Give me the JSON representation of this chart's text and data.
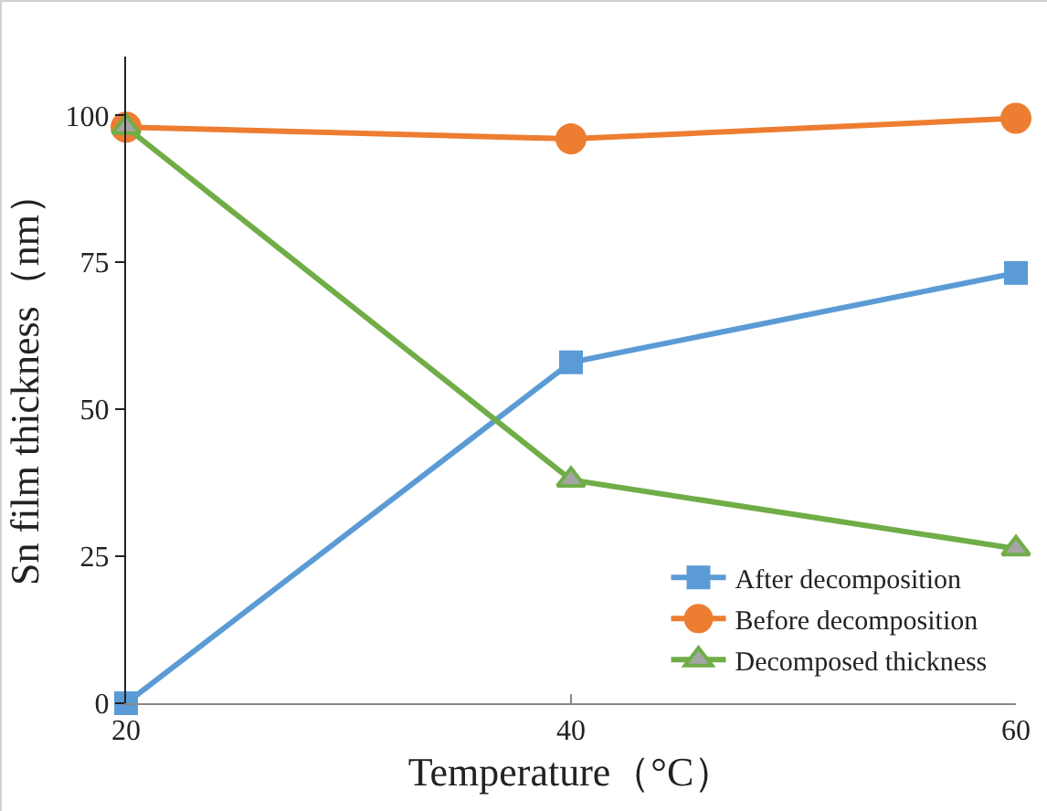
{
  "chart_data": {
    "type": "line",
    "xlabel": "Temperature（°C）",
    "ylabel": "Sn film thickness（nm）",
    "x": [
      20,
      40,
      60
    ],
    "xlim": [
      20,
      60
    ],
    "xticks": [
      20,
      40,
      60
    ],
    "ylim": [
      0,
      110
    ],
    "yticks": [
      0,
      25,
      50,
      75,
      100
    ],
    "grid": false,
    "legend": "bottom right",
    "series": [
      {
        "name": "After decomposition",
        "color": "#5b9bd5",
        "marker": "square",
        "values": [
          0,
          58,
          73.2
        ]
      },
      {
        "name": "Before decomposition",
        "color": "#ed7d31",
        "marker": "circle",
        "values": [
          98,
          96,
          99.5
        ]
      },
      {
        "name": "Decomposed thickness",
        "color": "#70ad47",
        "marker": "triangle",
        "values": [
          98,
          38,
          26.3
        ]
      }
    ]
  }
}
